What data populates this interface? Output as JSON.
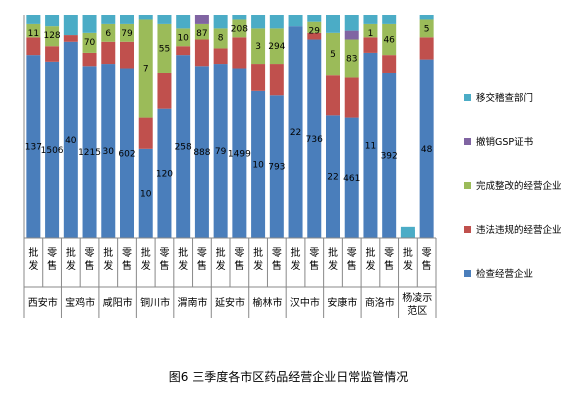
{
  "caption": "图6   三季度各市区药品经营企业日常监管情况",
  "colors": {
    "检查经营企业": "#4a7ebb",
    "违法违规的经营企业": "#c0504d",
    "完成整改的经营企业": "#9bbb59",
    "撤销GSP证书": "#8064a2",
    "移交稽查部门": "#4bacc6"
  },
  "chart_data": {
    "type": "bar",
    "stacked": "percent",
    "categories": [
      "西安市 批发",
      "西安市 零售",
      "宝鸡市 批发",
      "宝鸡市 零售",
      "咸阳市 批发",
      "咸阳市 零售",
      "铜川市 批发",
      "铜川市 零售",
      "渭南市 批发",
      "渭南市 零售",
      "延安市 批发",
      "延安市 零售",
      "榆林市 批发",
      "榆林市 零售",
      "汉中市 批发",
      "汉中市 零售",
      "安康市 批发",
      "安康市 零售",
      "商洛市 批发",
      "商洛市 零售",
      "杨凌示范区 批发",
      "杨凌示范区 零售"
    ],
    "groups": [
      "西安市",
      "宝鸡市",
      "咸阳市",
      "铜川市",
      "渭南市",
      "延安市",
      "榆林市",
      "汉中市",
      "安康市",
      "商洛市",
      "杨凌示范区"
    ],
    "subcategories": [
      "批发",
      "零售"
    ],
    "series": [
      {
        "name": "检查经营企业",
        "values": [
          82,
          79,
          88,
          77,
          78,
          76,
          40,
          58,
          82,
          77,
          78,
          76,
          66,
          64,
          95,
          89,
          55,
          54,
          83,
          74,
          0,
          80
        ],
        "labels": [
          "137",
          "1506",
          "40",
          "1215",
          "30",
          "602",
          "10",
          "120",
          "258",
          "888",
          "79",
          "1499",
          "10",
          "793",
          "22",
          "736",
          "22",
          "461",
          "11",
          "392",
          "",
          "48"
        ]
      },
      {
        "name": "违法违规的经营企业",
        "values": [
          8,
          7,
          3,
          6,
          10,
          12,
          14,
          16,
          4,
          12,
          7,
          14,
          12,
          14,
          0,
          3,
          18,
          18,
          7,
          8,
          0,
          10
        ],
        "labels": [
          "",
          "",
          "",
          "",
          "",
          "",
          "",
          "",
          "",
          "",
          "",
          "",
          "",
          "",
          "",
          "",
          "",
          "",
          "",
          "",
          "",
          ""
        ]
      },
      {
        "name": "完成整改的经营企业",
        "values": [
          6,
          9,
          0,
          9,
          8,
          8,
          44,
          22,
          8,
          7,
          9,
          8,
          16,
          16,
          0,
          5,
          19,
          17,
          6,
          14,
          0,
          8
        ],
        "labels": [
          "11",
          "128",
          "",
          "70",
          "6",
          "79",
          "7",
          "55",
          "10",
          "87",
          "8",
          "208",
          "3",
          "294",
          "",
          "29",
          "5",
          "83",
          "1",
          "46",
          "",
          "5"
        ]
      },
      {
        "name": "撤销GSP证书",
        "values": [
          0,
          0,
          0,
          0,
          0,
          0,
          0,
          0,
          0,
          4,
          0,
          0,
          0,
          0,
          0,
          0,
          0,
          4,
          0,
          0,
          0,
          0
        ],
        "labels": [
          "",
          "",
          "",
          "",
          "",
          "",
          "",
          "",
          "",
          "",
          "",
          "",
          "",
          "",
          "",
          "",
          "",
          "",
          "",
          "",
          "",
          ""
        ]
      },
      {
        "name": "移交稽查部门",
        "values": [
          4,
          5,
          9,
          8,
          4,
          4,
          2,
          4,
          6,
          0,
          6,
          2,
          6,
          6,
          5,
          3,
          8,
          7,
          4,
          4,
          5,
          2
        ],
        "labels": [
          "",
          "",
          "",
          "",
          "",
          "",
          "",
          "",
          "",
          "",
          "",
          "",
          "",
          "",
          "",
          "",
          "",
          "",
          "",
          "",
          "",
          ""
        ]
      }
    ],
    "legend_position": "right",
    "ylim": [
      0,
      100
    ],
    "grid": false
  }
}
